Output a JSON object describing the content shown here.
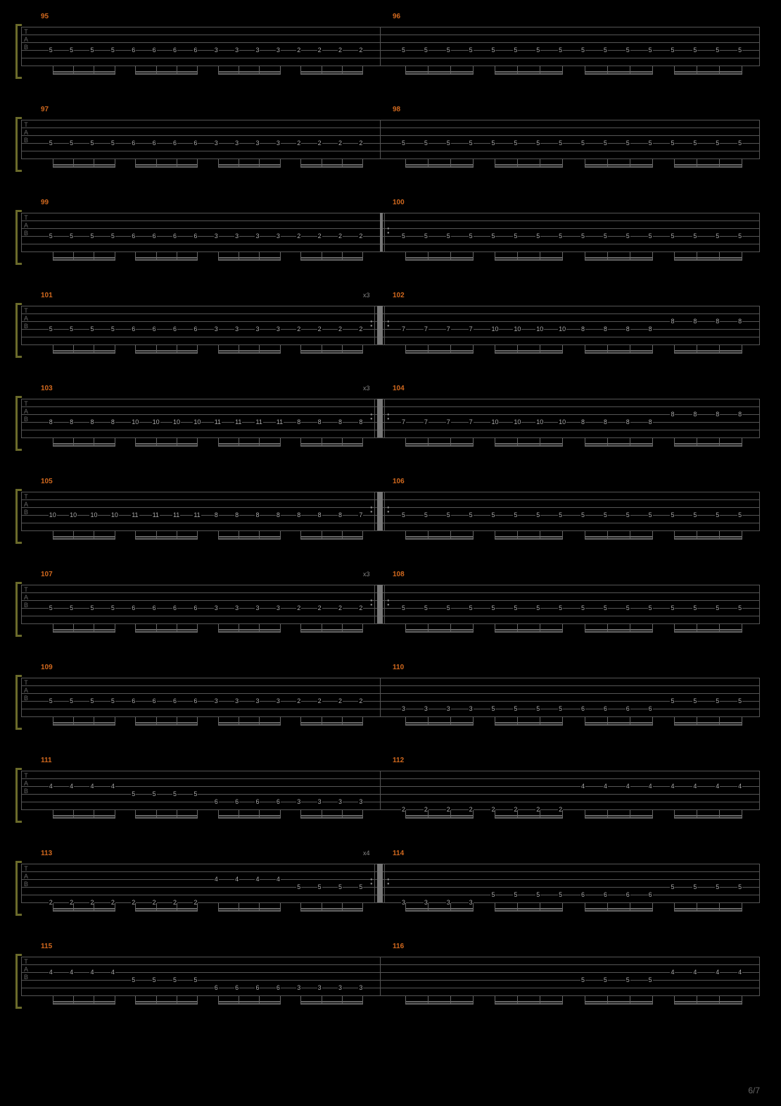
{
  "page_number": "6/7",
  "colors": {
    "background": "#000000",
    "staff_line": "#555555",
    "measure_number": "#d2691e",
    "note_text": "#aaaaaa",
    "bracket": "#6a6a2a",
    "stem": "#666666"
  },
  "tab_label": [
    "T",
    "A",
    "B"
  ],
  "systems": [
    {
      "measures": [
        {
          "num": "95",
          "repeat": "",
          "string": 4,
          "groups": [
            [
              "5",
              "5",
              "5",
              "5"
            ],
            [
              "6",
              "6",
              "6",
              "6"
            ],
            [
              "3",
              "3",
              "3",
              "3"
            ],
            [
              "2",
              "2",
              "2",
              "2"
            ]
          ]
        },
        {
          "num": "96",
          "repeat": "",
          "string": 4,
          "groups": [
            [
              "5",
              "5",
              "5",
              "5"
            ],
            [
              "5",
              "5",
              "5",
              "5"
            ],
            [
              "5",
              "5",
              "5",
              "5"
            ],
            [
              "5",
              "5",
              "5",
              "5"
            ]
          ]
        }
      ]
    },
    {
      "measures": [
        {
          "num": "97",
          "repeat": "",
          "string": 4,
          "groups": [
            [
              "5",
              "5",
              "5",
              "5"
            ],
            [
              "6",
              "6",
              "6",
              "6"
            ],
            [
              "3",
              "3",
              "3",
              "3"
            ],
            [
              "2",
              "2",
              "2",
              "2"
            ]
          ]
        },
        {
          "num": "98",
          "repeat": "",
          "string": 4,
          "groups": [
            [
              "5",
              "5",
              "5",
              "5"
            ],
            [
              "5",
              "5",
              "5",
              "5"
            ],
            [
              "5",
              "5",
              "5",
              "5"
            ],
            [
              "5",
              "5",
              "5",
              "5"
            ]
          ]
        }
      ]
    },
    {
      "measures": [
        {
          "num": "99",
          "repeat": "",
          "string": 4,
          "groups": [
            [
              "5",
              "5",
              "5",
              "5"
            ],
            [
              "6",
              "6",
              "6",
              "6"
            ],
            [
              "3",
              "3",
              "3",
              "3"
            ],
            [
              "2",
              "2",
              "2",
              "2"
            ]
          ]
        },
        {
          "num": "100",
          "repeat": "",
          "string": 4,
          "start_repeat": true,
          "groups": [
            [
              "5",
              "5",
              "5",
              "5"
            ],
            [
              "5",
              "5",
              "5",
              "5"
            ],
            [
              "5",
              "5",
              "5",
              "5"
            ],
            [
              "5",
              "5",
              "5",
              "5"
            ]
          ]
        }
      ]
    },
    {
      "measures": [
        {
          "num": "101",
          "repeat": "x3",
          "string": 4,
          "end_repeat": true,
          "groups": [
            [
              "5",
              "5",
              "5",
              "5"
            ],
            [
              "6",
              "6",
              "6",
              "6"
            ],
            [
              "3",
              "3",
              "3",
              "3"
            ],
            [
              "2",
              "2",
              "2",
              "2"
            ]
          ]
        },
        {
          "num": "102",
          "repeat": "",
          "string": 4,
          "start_repeat": true,
          "groups": [
            [
              "7",
              "7",
              "7",
              "7"
            ],
            [
              "10",
              "10",
              "10",
              "10"
            ],
            [
              "8",
              "8",
              "8",
              "8"
            ],
            [
              "8",
              "8",
              "8",
              "8"
            ]
          ],
          "string_override": [
            4,
            4,
            4,
            3
          ]
        }
      ]
    },
    {
      "measures": [
        {
          "num": "103",
          "repeat": "x3",
          "string": 4,
          "end_repeat": true,
          "groups": [
            [
              "8",
              "8",
              "8",
              "8"
            ],
            [
              "10",
              "10",
              "10",
              "10"
            ],
            [
              "11",
              "11",
              "11",
              "11"
            ],
            [
              "8",
              "8",
              "8",
              "8"
            ]
          ]
        },
        {
          "num": "104",
          "repeat": "",
          "string": 4,
          "start_repeat": true,
          "groups": [
            [
              "7",
              "7",
              "7",
              "7"
            ],
            [
              "10",
              "10",
              "10",
              "10"
            ],
            [
              "8",
              "8",
              "8",
              "8"
            ],
            [
              "8",
              "8",
              "8",
              "8"
            ]
          ],
          "string_override": [
            4,
            4,
            4,
            3
          ]
        }
      ]
    },
    {
      "measures": [
        {
          "num": "105",
          "repeat": "",
          "string": 4,
          "end_repeat": true,
          "groups": [
            [
              "10",
              "10",
              "10",
              "10"
            ],
            [
              "11",
              "11",
              "11",
              "11"
            ],
            [
              "8",
              "8",
              "8",
              "8"
            ],
            [
              "8",
              "8",
              "8",
              "7"
            ]
          ]
        },
        {
          "num": "106",
          "repeat": "",
          "string": 4,
          "start_repeat": true,
          "groups": [
            [
              "5",
              "5",
              "5",
              "5"
            ],
            [
              "5",
              "5",
              "5",
              "5"
            ],
            [
              "5",
              "5",
              "5",
              "5"
            ],
            [
              "5",
              "5",
              "5",
              "5"
            ]
          ]
        }
      ]
    },
    {
      "measures": [
        {
          "num": "107",
          "repeat": "x3",
          "string": 4,
          "end_repeat": true,
          "groups": [
            [
              "5",
              "5",
              "5",
              "5"
            ],
            [
              "6",
              "6",
              "6",
              "6"
            ],
            [
              "3",
              "3",
              "3",
              "3"
            ],
            [
              "2",
              "2",
              "2",
              "2"
            ]
          ]
        },
        {
          "num": "108",
          "repeat": "",
          "string": 4,
          "start_repeat": true,
          "groups": [
            [
              "5",
              "5",
              "5",
              "5"
            ],
            [
              "5",
              "5",
              "5",
              "5"
            ],
            [
              "5",
              "5",
              "5",
              "5"
            ],
            [
              "5",
              "5",
              "5",
              "5"
            ]
          ]
        }
      ]
    },
    {
      "measures": [
        {
          "num": "109",
          "repeat": "",
          "string": 4,
          "groups": [
            [
              "5",
              "5",
              "5",
              "5"
            ],
            [
              "6",
              "6",
              "6",
              "6"
            ],
            [
              "3",
              "3",
              "3",
              "3"
            ],
            [
              "2",
              "2",
              "2",
              "2"
            ]
          ]
        },
        {
          "num": "110",
          "repeat": "",
          "string": 5,
          "groups": [
            [
              "3",
              "3",
              "3",
              "3"
            ],
            [
              "5",
              "5",
              "5",
              "5"
            ],
            [
              "6",
              "6",
              "6",
              "6"
            ],
            [
              "5",
              "5",
              "5",
              "5"
            ]
          ],
          "string_override": [
            5,
            5,
            5,
            4
          ]
        }
      ]
    },
    {
      "measures": [
        {
          "num": "111",
          "repeat": "",
          "string": 4,
          "mixed": true,
          "groups": [
            [
              "4",
              "4",
              "4",
              "4"
            ],
            [
              "5",
              "5",
              "5",
              "5"
            ],
            [
              "6",
              "6",
              "6",
              "6"
            ],
            [
              "3",
              "3",
              "3",
              "3"
            ]
          ],
          "string_override": [
            3,
            4,
            5,
            5
          ]
        },
        {
          "num": "112",
          "repeat": "",
          "string": 5,
          "mixed": true,
          "groups": [
            [
              "2",
              "2",
              "2",
              "2"
            ],
            [
              "2",
              "2",
              "2",
              "2"
            ],
            [
              "4",
              "4",
              "4",
              "4"
            ],
            [
              "4",
              "4",
              "4",
              "4"
            ]
          ],
          "string_override": [
            6,
            6,
            3,
            3
          ]
        }
      ]
    },
    {
      "measures": [
        {
          "num": "113",
          "repeat": "x4",
          "string": 5,
          "end_repeat": true,
          "mixed": true,
          "groups": [
            [
              "2",
              "2",
              "2",
              "2"
            ],
            [
              "2",
              "2",
              "2",
              "2"
            ],
            [
              "4",
              "4",
              "4",
              "4"
            ],
            [
              "5",
              "5",
              "5",
              "5"
            ]
          ],
          "string_override": [
            6,
            6,
            3,
            4
          ]
        },
        {
          "num": "114",
          "repeat": "",
          "string": 5,
          "start_repeat": true,
          "groups": [
            [
              "3",
              "3",
              "3",
              "3"
            ],
            [
              "5",
              "5",
              "5",
              "5"
            ],
            [
              "6",
              "6",
              "6",
              "6"
            ],
            [
              "5",
              "5",
              "5",
              "5"
            ]
          ],
          "string_override": [
            6,
            5,
            5,
            4
          ]
        }
      ]
    },
    {
      "measures": [
        {
          "num": "115",
          "repeat": "",
          "string": 4,
          "mixed": true,
          "groups": [
            [
              "4",
              "4",
              "4",
              "4"
            ],
            [
              "5",
              "5",
              "5",
              "5"
            ],
            [
              "6",
              "6",
              "6",
              "6"
            ],
            [
              "3",
              "3",
              "3",
              "3"
            ]
          ],
          "string_override": [
            3,
            4,
            5,
            5
          ]
        },
        {
          "num": "116",
          "repeat": "",
          "string": 5,
          "mixed": true,
          "groups": [
            [
              "",
              "",
              "",
              ""
            ],
            [
              "",
              "",
              "",
              ""
            ],
            [
              "5",
              "5",
              "5",
              "5"
            ],
            [
              "4",
              "4",
              "4",
              "4"
            ]
          ],
          "string_override": [
            6,
            6,
            4,
            3
          ],
          "rests": [
            0,
            1
          ]
        }
      ]
    }
  ]
}
